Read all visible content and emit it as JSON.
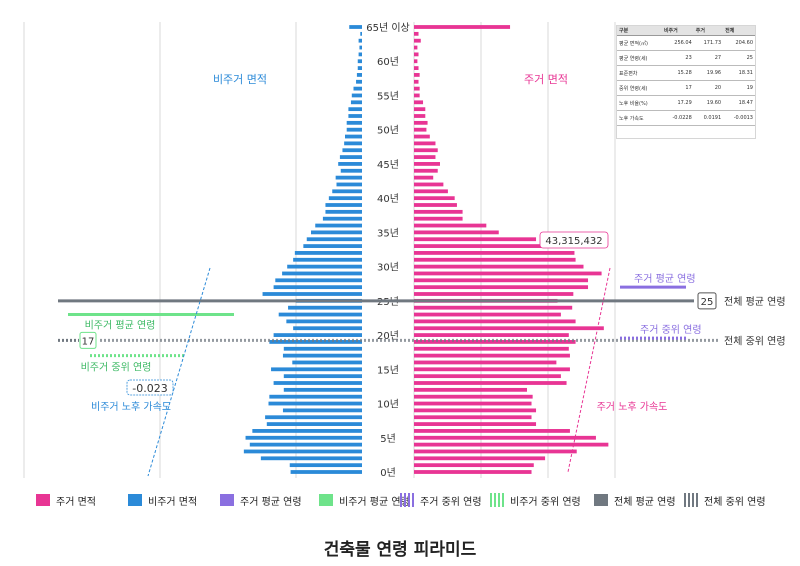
{
  "chart_data": {
    "type": "bar",
    "orientation": "horizontal-pyramid",
    "categories_top_to_bottom": [
      "65년 이상",
      "64",
      "63",
      "62",
      "61",
      "60",
      "59",
      "58",
      "57",
      "56",
      "55",
      "54",
      "53",
      "52",
      "51",
      "50",
      "49",
      "48",
      "47",
      "46",
      "45",
      "44",
      "43",
      "42",
      "41",
      "40",
      "39",
      "38",
      "37",
      "36",
      "35",
      "34",
      "33",
      "32",
      "31",
      "30",
      "29",
      "28",
      "27",
      "26",
      "25",
      "24",
      "23",
      "22",
      "21",
      "20",
      "19",
      "18",
      "17",
      "16",
      "15",
      "14",
      "13",
      "12",
      "11",
      "10",
      "9",
      "8",
      "7",
      "6",
      "5",
      "4",
      "3",
      "2",
      "1",
      "0"
    ],
    "y_tick_labels": [
      {
        "label": "65년 이상",
        "age": 65
      },
      {
        "label": "60년",
        "age": 60
      },
      {
        "label": "55년",
        "age": 55
      },
      {
        "label": "50년",
        "age": 50
      },
      {
        "label": "45년",
        "age": 45
      },
      {
        "label": "40년",
        "age": 40
      },
      {
        "label": "35년",
        "age": 35
      },
      {
        "label": "30년",
        "age": 30
      },
      {
        "label": "25년",
        "age": 25
      },
      {
        "label": "20년",
        "age": 20
      },
      {
        "label": "15년",
        "age": 15
      },
      {
        "label": "10년",
        "age": 10
      },
      {
        "label": "5년",
        "age": 5
      },
      {
        "label": "0년",
        "age": 0
      }
    ],
    "series": [
      {
        "name": "비주거 면적",
        "side": "left",
        "color": "#2b8ad8",
        "values_top_to_bottom": [
          0.15,
          0.02,
          0.04,
          0.03,
          0.04,
          0.05,
          0.05,
          0.06,
          0.07,
          0.1,
          0.12,
          0.13,
          0.16,
          0.16,
          0.18,
          0.18,
          0.2,
          0.21,
          0.23,
          0.26,
          0.28,
          0.25,
          0.31,
          0.3,
          0.35,
          0.39,
          0.43,
          0.43,
          0.46,
          0.55,
          0.6,
          0.65,
          0.69,
          0.79,
          0.81,
          0.88,
          0.94,
          1.02,
          1.04,
          1.17,
          0.78,
          0.87,
          0.98,
          0.89,
          0.81,
          1.04,
          1.09,
          0.92,
          0.93,
          0.82,
          1.07,
          0.92,
          1.04,
          0.92,
          1.09,
          1.1,
          0.93,
          1.14,
          1.12,
          1.29,
          1.37,
          1.32,
          1.39,
          1.19,
          0.85,
          0.84
        ]
      },
      {
        "name": "주거 면적",
        "side": "right",
        "color": "#e83594",
        "values_top_to_bottom": [
          0.85,
          0.04,
          0.06,
          0.03,
          0.04,
          0.03,
          0.04,
          0.05,
          0.04,
          0.05,
          0.05,
          0.08,
          0.1,
          0.1,
          0.12,
          0.11,
          0.14,
          0.19,
          0.21,
          0.19,
          0.23,
          0.21,
          0.17,
          0.26,
          0.3,
          0.36,
          0.38,
          0.43,
          0.43,
          0.64,
          0.75,
          1.08,
          1.24,
          1.42,
          1.43,
          1.5,
          1.66,
          1.54,
          1.54,
          1.41,
          1.27,
          1.4,
          1.3,
          1.43,
          1.68,
          1.37,
          1.43,
          1.37,
          1.38,
          1.26,
          1.38,
          1.3,
          1.35,
          1.0,
          1.05,
          1.04,
          1.08,
          1.04,
          1.08,
          1.38,
          1.61,
          1.72,
          1.44,
          1.16,
          1.06,
          1.04
        ]
      }
    ],
    "xlim_left": [
      0,
      2.7
    ],
    "xlim_right": [
      0,
      2.3
    ],
    "grid": "vertical",
    "annotations": {
      "max_label": "43,315,432",
      "overall_mean_age_badge": "25",
      "overall_mean_age_label": "전체 평균 연령",
      "overall_median_age_label": "전체 중위 연령",
      "nonres_median_age_badge": "17",
      "nonres_mean_age_label": "비주거 평균 연령",
      "nonres_median_age_label": "비주거 중위 연령",
      "res_mean_age_label": "주거 평균 연령",
      "res_median_age_label": "주거 중위 연령",
      "nonres_aging_badge": "-0.023",
      "nonres_aging_label": "비주거 노후 가속도",
      "res_aging_label": "주거 노후 가속도",
      "nonres_area_label": "비주거 면적",
      "res_area_label": "주거 면적"
    },
    "reference_lines": {
      "overall_mean_age": 25,
      "overall_median_age": 19,
      "res_mean_age": 27,
      "res_median_age": 20,
      "nonres_mean_age": 23,
      "nonres_median_age": 17
    },
    "title": "건축물 연령 피라미드"
  },
  "stats_table": {
    "headers": [
      "구분",
      "비주거",
      "주거",
      "전체"
    ],
    "rows": [
      {
        "label": "평균 면적(㎡)",
        "nonres": "256.04",
        "res": "171.73",
        "total": "204.60"
      },
      {
        "label": "평균 연령(세)",
        "nonres": "23",
        "res": "27",
        "total": "25"
      },
      {
        "label": "표준편차",
        "nonres": "15.28",
        "res": "19.96",
        "total": "18.31"
      },
      {
        "label": "중위 연령(세)",
        "nonres": "17",
        "res": "20",
        "total": "19"
      },
      {
        "label": "노후 비율(%)",
        "nonres": "17.29",
        "res": "19.60",
        "total": "18.47"
      },
      {
        "label": "노후 가속도",
        "nonres": "-0.0228",
        "res": "0.0191",
        "total": "-0.0013"
      }
    ]
  },
  "legend": [
    {
      "label": "주거 면적",
      "kind": "solid",
      "color": "#e83594"
    },
    {
      "label": "비주거 면적",
      "kind": "solid",
      "color": "#2b8ad8"
    },
    {
      "label": "주거 평균 연령",
      "kind": "solid",
      "color": "#8a6fe0"
    },
    {
      "label": "비주거 평균 연령",
      "kind": "solid",
      "color": "#6ee38a"
    },
    {
      "label": "주거 중위 연령",
      "kind": "dashed",
      "color": "#8a6fe0"
    },
    {
      "label": "비주거 중위 연령",
      "kind": "dashed",
      "color": "#6ee38a"
    },
    {
      "label": "전체 평균 연령",
      "kind": "solid",
      "color": "#707880"
    },
    {
      "label": "전체 중위 연령",
      "kind": "dashed",
      "color": "#707880"
    }
  ],
  "caption": "건축물 연령 피라미드",
  "colors": {
    "residential": "#e83594",
    "nonresidential": "#2b8ad8",
    "res_age": "#8a6fe0",
    "nonres_age": "#6ee38a",
    "overall": "#707880",
    "grid": "#d8d8d8"
  }
}
